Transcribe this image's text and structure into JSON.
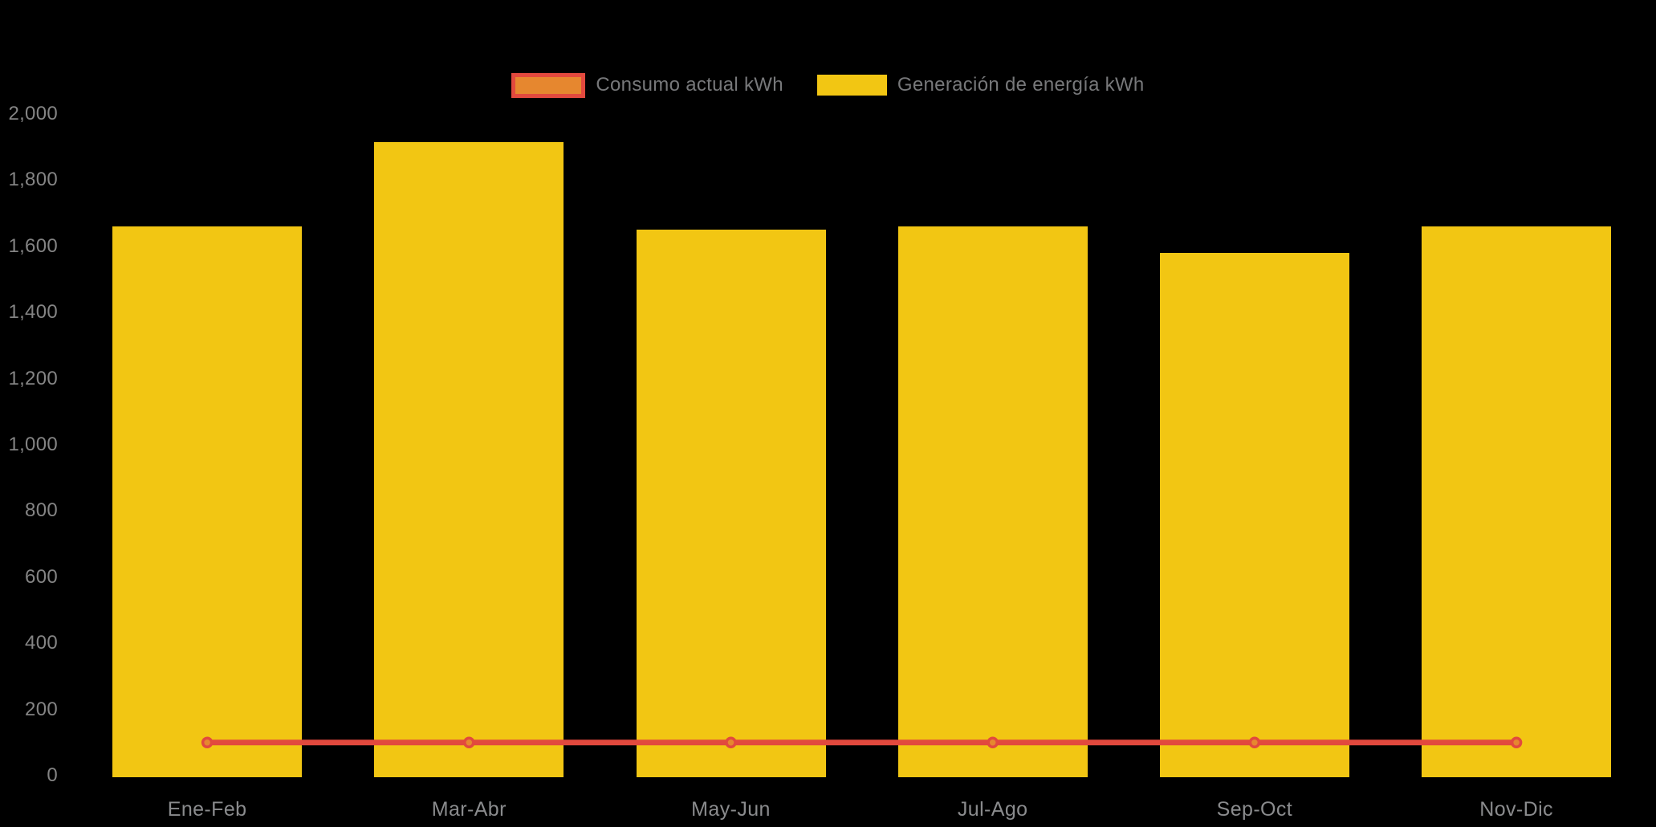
{
  "legend": {
    "items": [
      {
        "label": "Consumo actual kWh"
      },
      {
        "label": "Generación de energía kWh"
      }
    ]
  },
  "chart_data": {
    "type": "bar",
    "title": "",
    "categories": [
      "Ene-Feb",
      "Mar-Abr",
      "May-Jun",
      "Jul-Ago",
      "Sep-Oct",
      "Nov-Dic"
    ],
    "series": [
      {
        "name": "Consumo actual kWh",
        "type": "line",
        "color": "#E2493E",
        "marker_fill": "#E6872F",
        "values": [
          100,
          100,
          100,
          100,
          100,
          100
        ]
      },
      {
        "name": "Generación de energía kWh",
        "type": "bar",
        "color": "#F2C613",
        "values": [
          1660,
          1915,
          1650,
          1660,
          1580,
          1660
        ]
      }
    ],
    "xlabel": "",
    "ylabel": "",
    "ylim": [
      0,
      2000
    ],
    "ytick_step": 200,
    "ytick_labels": [
      "0",
      "200",
      "400",
      "600",
      "800",
      "1,000",
      "1,200",
      "1,400",
      "1,600",
      "1,800",
      "2,000"
    ],
    "grid": false,
    "legend_position": "top-center",
    "background": "#000000",
    "text_color": "#848484"
  }
}
